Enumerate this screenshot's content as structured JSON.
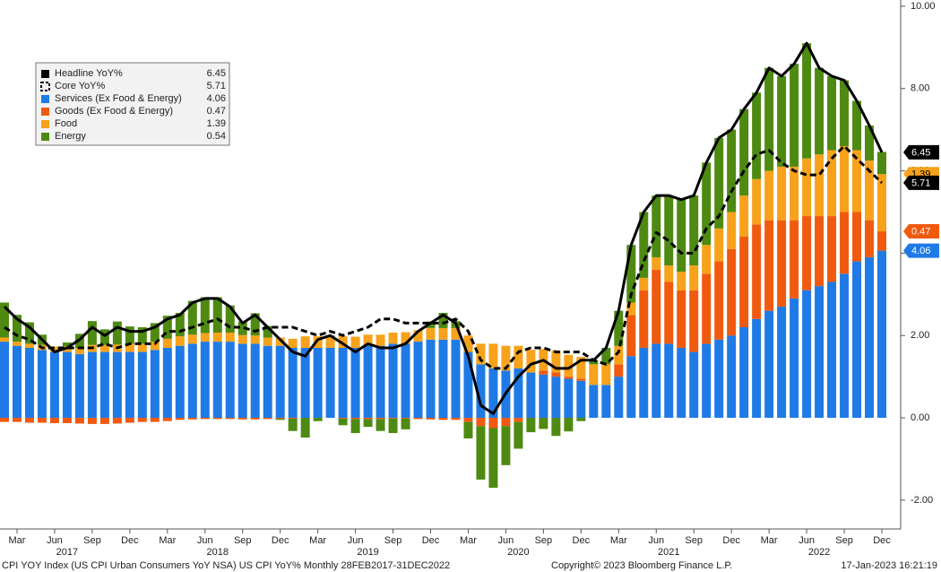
{
  "chart_data": {
    "type": "bar",
    "stacked": true,
    "categories": [
      null,
      "Mar",
      null,
      null,
      "Jun",
      null,
      null,
      "Sep",
      null,
      null,
      "Dec",
      null,
      null,
      "Mar",
      null,
      null,
      "Jun",
      null,
      null,
      "Sep",
      null,
      null,
      "Dec",
      null,
      null,
      "Mar",
      null,
      null,
      "Jun",
      null,
      null,
      "Sep",
      null,
      null,
      "Dec",
      null,
      null,
      "Mar",
      null,
      null,
      "Jun",
      null,
      null,
      "Sep",
      null,
      null,
      "Dec",
      null,
      null,
      "Mar",
      null,
      null,
      "Jun",
      null,
      null,
      "Sep",
      null,
      null,
      "Dec",
      null,
      null,
      "Mar",
      null,
      null,
      "Jun",
      null,
      null,
      "Sep",
      null,
      null,
      "Dec"
    ],
    "years": [
      "2017",
      "2018",
      "2019",
      "2020",
      "2021",
      "2022"
    ],
    "ylim": [
      -2.7,
      10.15
    ],
    "yticks": [
      {
        "value": -2,
        "label": "-2.00"
      },
      {
        "value": 0,
        "label": "0.00"
      },
      {
        "value": 2,
        "label": "2.00"
      },
      {
        "value": 4,
        "label": "4.00"
      },
      {
        "value": 6,
        "label": "6.00"
      },
      {
        "value": 8,
        "label": "8.00"
      },
      {
        "value": 10,
        "label": "10.00"
      }
    ],
    "series": [
      {
        "name": "Headline YoY%",
        "type": "line",
        "color": "#000000",
        "dash": false,
        "tag": true,
        "values": [
          2.7,
          2.4,
          2.2,
          1.9,
          1.6,
          1.7,
          1.9,
          2.2,
          2.0,
          2.2,
          2.1,
          2.1,
          2.2,
          2.4,
          2.5,
          2.8,
          2.9,
          2.9,
          2.7,
          2.3,
          2.5,
          2.2,
          1.9,
          1.6,
          1.5,
          1.9,
          2.0,
          1.8,
          1.6,
          1.8,
          1.7,
          1.7,
          1.8,
          2.1,
          2.3,
          2.5,
          2.3,
          1.5,
          0.3,
          0.1,
          0.6,
          1.0,
          1.3,
          1.4,
          1.2,
          1.2,
          1.4,
          1.4,
          1.7,
          2.6,
          4.2,
          5.0,
          5.4,
          5.4,
          5.3,
          5.4,
          6.2,
          6.8,
          7.0,
          7.5,
          7.9,
          8.5,
          8.3,
          8.6,
          9.1,
          8.5,
          8.3,
          8.2,
          7.7,
          7.1,
          6.45
        ]
      },
      {
        "name": "Core YoY%",
        "type": "line",
        "color": "#000000",
        "dash": true,
        "tag": true,
        "values": [
          2.2,
          2.0,
          1.9,
          1.7,
          1.7,
          1.7,
          1.7,
          1.7,
          1.8,
          1.7,
          1.8,
          1.8,
          1.8,
          2.1,
          2.1,
          2.2,
          2.3,
          2.4,
          2.2,
          2.2,
          2.1,
          2.2,
          2.2,
          2.2,
          2.1,
          2.0,
          2.1,
          2.0,
          2.1,
          2.2,
          2.4,
          2.4,
          2.3,
          2.3,
          2.3,
          2.3,
          2.4,
          2.1,
          1.4,
          1.2,
          1.2,
          1.6,
          1.7,
          1.7,
          1.6,
          1.6,
          1.6,
          1.4,
          1.3,
          1.6,
          3.0,
          3.8,
          4.5,
          4.3,
          4.0,
          4.0,
          4.6,
          4.9,
          5.5,
          6.0,
          6.4,
          6.5,
          6.2,
          6.0,
          5.9,
          5.9,
          6.3,
          6.6,
          6.3,
          6.0,
          5.71
        ]
      },
      {
        "name": "Services (Ex Food & Energy)",
        "type": "bar",
        "color": "#1f7ae6",
        "tag": true,
        "values": [
          1.85,
          1.75,
          1.7,
          1.65,
          1.6,
          1.6,
          1.55,
          1.6,
          1.6,
          1.6,
          1.6,
          1.6,
          1.65,
          1.7,
          1.75,
          1.8,
          1.85,
          1.85,
          1.85,
          1.8,
          1.8,
          1.75,
          1.75,
          1.7,
          1.7,
          1.7,
          1.7,
          1.7,
          1.7,
          1.75,
          1.75,
          1.8,
          1.8,
          1.85,
          1.9,
          1.9,
          1.9,
          1.6,
          1.3,
          1.2,
          1.15,
          1.2,
          1.1,
          1.05,
          1.0,
          0.95,
          0.9,
          0.8,
          0.8,
          1.0,
          1.5,
          1.7,
          1.8,
          1.8,
          1.7,
          1.6,
          1.8,
          1.9,
          2.0,
          2.2,
          2.4,
          2.6,
          2.7,
          2.9,
          3.1,
          3.2,
          3.3,
          3.5,
          3.8,
          3.9,
          4.06
        ]
      },
      {
        "name": "Goods (Ex Food & Energy)",
        "type": "bar",
        "color": "#f05a0f",
        "tag": true,
        "values": [
          -0.1,
          -0.1,
          -0.12,
          -0.12,
          -0.13,
          -0.13,
          -0.14,
          -0.15,
          -0.15,
          -0.14,
          -0.12,
          -0.1,
          -0.1,
          -0.08,
          -0.05,
          -0.04,
          -0.03,
          -0.03,
          -0.03,
          -0.04,
          -0.04,
          -0.03,
          -0.02,
          -0.02,
          0.0,
          0.0,
          0.0,
          -0.02,
          -0.03,
          -0.03,
          -0.03,
          -0.02,
          -0.02,
          -0.03,
          -0.04,
          -0.05,
          -0.05,
          -0.1,
          -0.2,
          -0.25,
          -0.2,
          -0.1,
          0.0,
          0.1,
          0.1,
          0.05,
          0.05,
          0.0,
          0.0,
          0.3,
          1.0,
          1.4,
          1.8,
          1.5,
          1.4,
          1.5,
          1.7,
          1.9,
          2.1,
          2.2,
          2.3,
          2.2,
          2.1,
          1.9,
          1.8,
          1.7,
          1.6,
          1.5,
          1.2,
          0.9,
          0.47
        ]
      },
      {
        "name": "Food",
        "type": "bar",
        "color": "#f7a21b",
        "tag": true,
        "values": [
          0.1,
          0.1,
          0.1,
          0.12,
          0.13,
          0.14,
          0.15,
          0.17,
          0.17,
          0.18,
          0.2,
          0.2,
          0.2,
          0.22,
          0.23,
          0.22,
          0.21,
          0.22,
          0.22,
          0.21,
          0.2,
          0.2,
          0.2,
          0.22,
          0.28,
          0.28,
          0.28,
          0.28,
          0.27,
          0.27,
          0.27,
          0.27,
          0.28,
          0.28,
          0.28,
          0.28,
          0.28,
          0.4,
          0.5,
          0.6,
          0.6,
          0.55,
          0.55,
          0.52,
          0.54,
          0.53,
          0.53,
          0.5,
          0.5,
          0.45,
          0.3,
          0.3,
          0.3,
          0.4,
          0.45,
          0.6,
          0.7,
          0.8,
          0.9,
          1.0,
          1.1,
          1.2,
          1.3,
          1.3,
          1.4,
          1.5,
          1.6,
          1.6,
          1.5,
          1.45,
          1.39
        ]
      },
      {
        "name": "Energy",
        "type": "bar",
        "color": "#4e8a12",
        "tag": false,
        "values": [
          0.85,
          0.65,
          0.52,
          0.25,
          0.0,
          0.09,
          0.34,
          0.58,
          0.38,
          0.56,
          0.42,
          0.4,
          0.45,
          0.56,
          0.57,
          0.82,
          0.87,
          0.86,
          0.66,
          0.33,
          0.54,
          0.28,
          -0.03,
          -0.3,
          -0.48,
          -0.08,
          0.02,
          -0.16,
          -0.34,
          -0.19,
          -0.29,
          -0.35,
          -0.26,
          0.0,
          0.16,
          0.37,
          0.17,
          -0.4,
          -1.3,
          -1.45,
          -0.95,
          -0.65,
          -0.35,
          -0.27,
          -0.44,
          -0.33,
          -0.08,
          0.1,
          0.4,
          0.85,
          1.4,
          1.6,
          1.5,
          1.7,
          1.75,
          1.7,
          2.0,
          2.2,
          2.0,
          2.1,
          2.1,
          2.5,
          2.2,
          2.5,
          2.8,
          2.1,
          1.8,
          1.6,
          1.2,
          0.85,
          0.54
        ]
      }
    ],
    "footer": [
      "CPI YOY Index (US CPI Urban Consumers YoY NSA) US CPI YoY% Monthly 28FEB2017-31DEC2022",
      "Copyright© 2023 Bloomberg Finance L.P.",
      "17-Jan-2023 16:21:19"
    ]
  }
}
